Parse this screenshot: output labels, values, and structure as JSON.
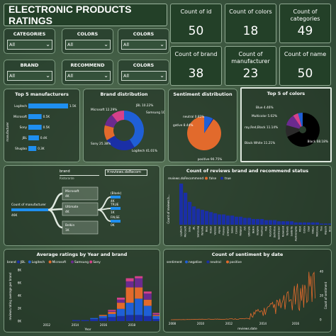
{
  "title": "ELECTRONIC PRODUCTS RATINGS",
  "filters": [
    {
      "label": "CATEGORIES",
      "value": "All"
    },
    {
      "label": "COLORS",
      "value": "All"
    },
    {
      "label": "COLORS",
      "value": "All"
    },
    {
      "label": "BRAND",
      "value": "All"
    },
    {
      "label": "RECOMMEND",
      "value": "All"
    },
    {
      "label": "COLORS",
      "value": "All"
    }
  ],
  "kpis": [
    {
      "label": "Count of id",
      "value": "50"
    },
    {
      "label": "Count of colors",
      "value": "18"
    },
    {
      "label": "Count of categories",
      "value": "49"
    },
    {
      "label": "Count of brand",
      "value": "38"
    },
    {
      "label": "Count of manufacturer",
      "value": "23"
    },
    {
      "label": "Count of name",
      "value": "50"
    }
  ],
  "top_manufacturers": {
    "title": "Top 5 manufacturers",
    "ylabel": "manufacturer",
    "categories": [
      "Logitech",
      "Microsoft",
      "Sony",
      "JBL",
      "Shuglao"
    ],
    "labels": [
      "1.5K",
      "0.5K",
      "0.5K",
      "0.4K",
      "0.3K"
    ],
    "values": [
      1.5,
      0.5,
      0.5,
      0.4,
      0.3
    ]
  },
  "brand_distribution": {
    "title": "Brand distribution",
    "slices": [
      {
        "name": "Logitech",
        "label": "Logitech 41.01%",
        "value": 41.01,
        "color": "#1f5fd6"
      },
      {
        "name": "Sony",
        "label": "Sony 25.38%",
        "value": 25.38,
        "color": "#1a2fa6"
      },
      {
        "name": "Microsoft",
        "label": "Microsoft 12.29%",
        "value": 12.29,
        "color": "#e26a2c"
      },
      {
        "name": "JBL",
        "label": "JBL 10.22%",
        "value": 10.22,
        "color": "#6b2a8f"
      },
      {
        "name": "Samsung",
        "label": "Samsung 10.52%",
        "value": 10.52,
        "color": "#d6418a"
      }
    ]
  },
  "sentiment_distribution": {
    "title": "Sentiment distribution",
    "slices": [
      {
        "name": "positive",
        "label": "positive 90.75%",
        "value": 90.75,
        "color": "#e26a2c"
      },
      {
        "name": "negative",
        "label": "gative 8.44%",
        "value": 8.44,
        "color": "#1f5fd6"
      },
      {
        "name": "neutral",
        "label": "neutral 0.81%",
        "value": 0.81,
        "color": "#1a2fa6"
      }
    ]
  },
  "top_colors": {
    "title": "Top 5 of colors",
    "slices": [
      {
        "name": "Black",
        "label": "Black 68.18%",
        "value": 68.18,
        "color": "#000000"
      },
      {
        "name": "Black White",
        "label": "Black White 11.21%",
        "value": 11.21,
        "color": "#2a2a2a"
      },
      {
        "name": "Red/Red/Black",
        "label": "ray,Red,Black 11.14%",
        "value": 11.14,
        "color": "#6b2a8f"
      },
      {
        "name": "Multicolor",
        "label": "Multicolor 5.02%",
        "value": 5.02,
        "color": "#d6418a"
      },
      {
        "name": "Blue",
        "label": "Blue 4.46%",
        "value": 4.46,
        "color": "#1f5fd6"
      }
    ]
  },
  "decomposition": {
    "chips": [
      "brand",
      "reviews.doRecom"
    ],
    "chip_sub": "Ristorante",
    "root_label": "Count of manufacturer",
    "root_value": "46K",
    "nodes": [
      {
        "name": "Microsoft",
        "value": "4K"
      },
      {
        "name": "Ultimate",
        "value": "4K"
      },
      {
        "name": "Belkin",
        "value": "1K"
      }
    ],
    "leaves": [
      {
        "name": "(Blank)",
        "value": "4K"
      },
      {
        "name": "TRUE",
        "value": "1K"
      },
      {
        "name": "FALSE",
        "value": "0K"
      }
    ]
  },
  "reviews_chart": {
    "title": "Count of reviews brand and recommend status",
    "legend_title": "reviews.doRecommend",
    "legend": [
      {
        "name": "false",
        "color": "#e26a2c"
      },
      {
        "name": "true",
        "color": "#1a2fa6"
      }
    ],
    "ylabel": "Count of reviews.b...",
    "values": [
      36,
      28,
      20,
      16,
      14,
      13,
      12,
      11,
      10,
      9,
      9,
      8,
      8,
      7,
      7,
      6,
      6,
      5,
      5,
      5,
      4,
      4,
      4,
      3,
      3,
      3,
      3,
      2,
      2,
      2,
      2,
      2,
      2,
      1,
      1,
      1,
      1,
      1
    ],
    "xlabels": [
      "Logitech",
      "Microsoft",
      "Sony",
      "JBL",
      "Samsung",
      "Yamaha",
      "Bose",
      "Kicker",
      "Verizon",
      "Alpine",
      "Pioneer",
      "Lowepro",
      "Sanus",
      "Canon",
      "Netgear",
      "JVC",
      "Ultimate",
      "Belkin",
      "Insignia",
      "Peerless",
      "Polk",
      "Rockford",
      "Definitive",
      "Sennheiser",
      "Kenwood",
      "Yurbuds",
      "Sunbrite",
      "Audioengine",
      "Fitbit",
      "Cobra",
      "Dual",
      "Onkyo",
      "Motorola",
      "Tivo",
      "Klipsch",
      "Boss",
      "WD",
      "Apple"
    ]
  },
  "avg_ratings": {
    "title": "Average ratings by Year and brand",
    "legend_title": "brand",
    "legend": [
      {
        "name": "JBL",
        "color": "#1a2fa6"
      },
      {
        "name": "Logitech",
        "color": "#1f5fd6"
      },
      {
        "name": "Microsoft",
        "color": "#e26a2c"
      },
      {
        "name": "Samsung",
        "color": "#6b2a8f"
      },
      {
        "name": "Sony",
        "color": "#d6418a"
      }
    ],
    "ylabel": "reviews.rating average per brand",
    "yticks": [
      "0K",
      "2K",
      "4K",
      "6K",
      "8K"
    ],
    "xlabel": "Year",
    "xticks": [
      "2012",
      "2014",
      "2016",
      "2018"
    ],
    "bars": [
      {
        "year": "2010",
        "stack": [
          0.1,
          0,
          0,
          0,
          0
        ]
      },
      {
        "year": "2011",
        "stack": [
          0.1,
          0,
          0,
          0,
          0
        ]
      },
      {
        "year": "2012",
        "stack": [
          0.2,
          0.1,
          0,
          0,
          0
        ]
      },
      {
        "year": "2013",
        "stack": [
          0.3,
          0.2,
          0.1,
          0,
          0
        ]
      },
      {
        "year": "2014",
        "stack": [
          0.4,
          0.3,
          0.2,
          0.1,
          0.1
        ]
      },
      {
        "year": "2015",
        "stack": [
          0.5,
          0.7,
          0.6,
          0.3,
          0.2
        ]
      },
      {
        "year": "2016",
        "stack": [
          0.6,
          1.2,
          1.5,
          0.6,
          0.3
        ]
      },
      {
        "year": "2017",
        "stack": [
          0.6,
          1.6,
          1.1,
          0.9,
          0.2
        ]
      },
      {
        "year": "2018",
        "stack": [
          0.5,
          1.0,
          0.6,
          0.6,
          0.2
        ]
      },
      {
        "year": "2019",
        "stack": [
          0.2,
          0.3,
          0.1,
          0.1,
          0.1
        ]
      }
    ]
  },
  "sentiment_date": {
    "title": "Count of sentiment by date",
    "legend_title": "sentiment",
    "legend": [
      {
        "name": "negative",
        "color": "#1f5fd6"
      },
      {
        "name": "neutral",
        "color": "#1a2fa6"
      },
      {
        "name": "positive",
        "color": "#e26a2c"
      }
    ],
    "ylabel": "Count of sentiment",
    "yticks": [
      "0",
      "20",
      "40"
    ],
    "xlabel": "reviews.date",
    "xticks": [
      "2008",
      "2010",
      "2012",
      "2014",
      "2016"
    ]
  }
}
